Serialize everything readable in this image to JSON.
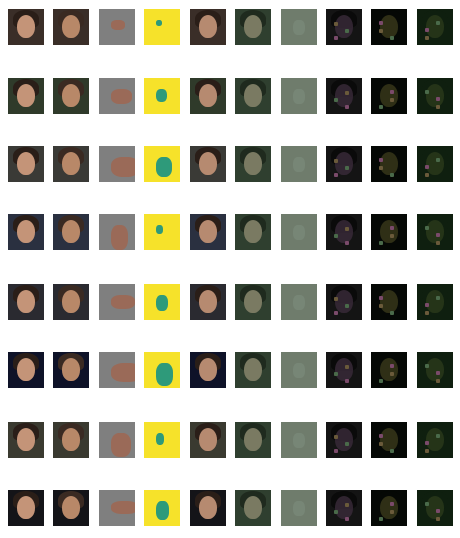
{
  "grid": {
    "rows": 8,
    "cols": 10
  },
  "column_styles": [
    {
      "bg": "#4a4a44",
      "face": "#c49478",
      "hair": "#2a1e18",
      "kind": "photo"
    },
    {
      "bg": "#5a4a3e",
      "face": "#b88868",
      "hair": "#3a2a22",
      "kind": "photo"
    },
    {
      "bg": "#7f7f7f",
      "face": "#9a6a58",
      "hair": "#7f7f7f",
      "kind": "masked"
    },
    {
      "bg": "#f6e22a",
      "face": "#2e9a7a",
      "hair": "#f6e22a",
      "kind": "heat"
    },
    {
      "bg": "#4a4a44",
      "face": "#b68a70",
      "hair": "#2a1e18",
      "kind": "photo"
    },
    {
      "bg": "#2f3f2f",
      "face": "#7a7a62",
      "hair": "#1f2a1e",
      "kind": "tint"
    },
    {
      "bg": "#6f7c6c",
      "face": "#7a8a7a",
      "hair": "#6f7c6c",
      "kind": "diff"
    },
    {
      "bg": "#141414",
      "face": "#3a2a3a",
      "hair": "#0a0a0a",
      "kind": "dark"
    },
    {
      "bg": "#050805",
      "face": "#3a3a1a",
      "hair": "#050805",
      "kind": "dark"
    },
    {
      "bg": "#0f1f0f",
      "face": "#2a3a1a",
      "hair": "#0f1f0f",
      "kind": "dark"
    }
  ],
  "row_tints": [
    "#3a2e28",
    "#2f3a2a",
    "#3a3a36",
    "#2a3040",
    "#2a2a30",
    "#0e1228",
    "#3a3a30",
    "#141418"
  ]
}
